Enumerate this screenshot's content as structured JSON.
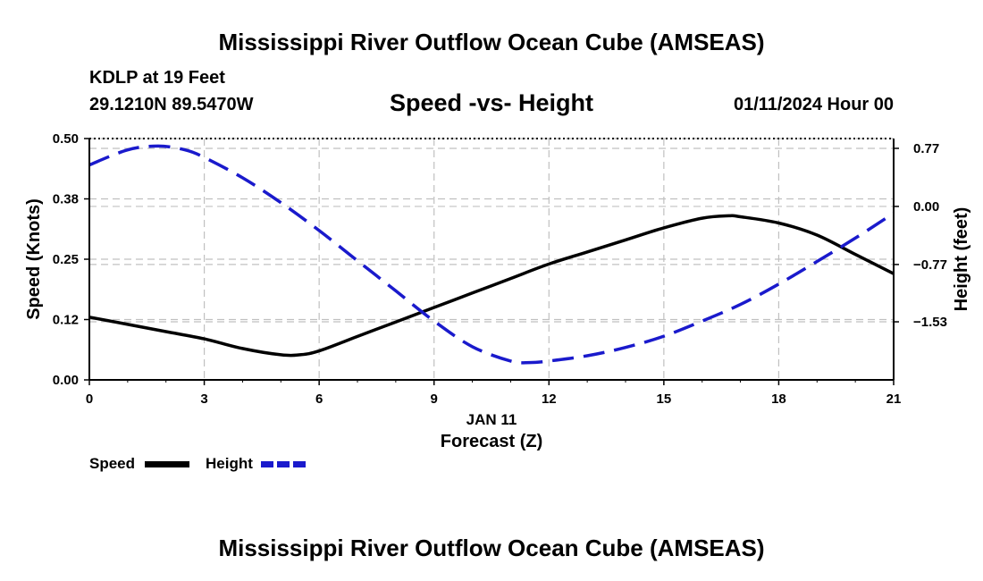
{
  "header": {
    "title": "Mississippi River Outflow Ocean Cube (AMSEAS)",
    "station": "KDLP at 19 Feet",
    "coords": "29.1210N  89.5470W",
    "subtitle": "Speed -vs- Height",
    "datetime": "01/11/2024 Hour 00"
  },
  "legend": {
    "speed_label": "Speed",
    "height_label": "Height"
  },
  "footer": {
    "title": "Mississippi River Outflow Ocean Cube (AMSEAS)"
  },
  "colors": {
    "speed": "#000000",
    "height": "#1a1acc",
    "grid": "#c0c0c0"
  },
  "chart_data": {
    "type": "line",
    "title": "Speed -vs- Height",
    "xlabel": "Forecast (Z)",
    "xsublabel": "JAN 11",
    "ylabel": "Speed (Knots)",
    "y2label": "Height (feet)",
    "xlim": [
      0,
      21
    ],
    "ylim": [
      0,
      0.5
    ],
    "y2lim": [
      -2.3,
      0.9
    ],
    "x_ticks": [
      0,
      3,
      6,
      9,
      12,
      15,
      18,
      21
    ],
    "x_tick_labels": [
      "0",
      "3",
      "6",
      "9",
      "12",
      "15",
      "18",
      "21"
    ],
    "y_ticks": [
      0,
      0.125,
      0.25,
      0.375,
      0.5
    ],
    "y_tick_labels": [
      "0.00",
      "0.12",
      "0.25",
      "0.38",
      "0.50"
    ],
    "y2_ticks": [
      0.77,
      0,
      -0.77,
      -1.53
    ],
    "y2_tick_labels": [
      "0.77",
      "0.00",
      "−0.77",
      "−1.53"
    ],
    "grid": true,
    "series": [
      {
        "name": "Speed",
        "axis": "left",
        "style": "solid",
        "x": [
          0,
          1,
          2,
          3,
          4,
          5,
          5.5,
          6,
          7,
          8,
          9,
          10,
          11,
          12,
          13,
          14,
          15,
          16,
          16.7,
          17,
          18,
          19,
          20,
          21
        ],
        "y": [
          0.13,
          0.115,
          0.1,
          0.085,
          0.065,
          0.052,
          0.052,
          0.06,
          0.09,
          0.12,
          0.15,
          0.18,
          0.21,
          0.24,
          0.265,
          0.29,
          0.315,
          0.335,
          0.34,
          0.338,
          0.325,
          0.3,
          0.26,
          0.22
        ]
      },
      {
        "name": "Height",
        "axis": "right",
        "style": "dashed",
        "x": [
          0,
          1,
          1.8,
          2.5,
          3,
          4,
          5,
          6,
          7,
          8,
          9,
          10,
          11,
          11.5,
          12,
          13,
          14,
          15,
          16,
          17,
          18,
          19,
          20,
          21
        ],
        "y": [
          0.55,
          0.75,
          0.8,
          0.75,
          0.65,
          0.38,
          0.05,
          -0.32,
          -0.72,
          -1.12,
          -1.52,
          -1.86,
          -2.05,
          -2.07,
          -2.05,
          -1.98,
          -1.87,
          -1.72,
          -1.52,
          -1.3,
          -1.03,
          -0.73,
          -0.42,
          -0.09
        ]
      }
    ]
  }
}
